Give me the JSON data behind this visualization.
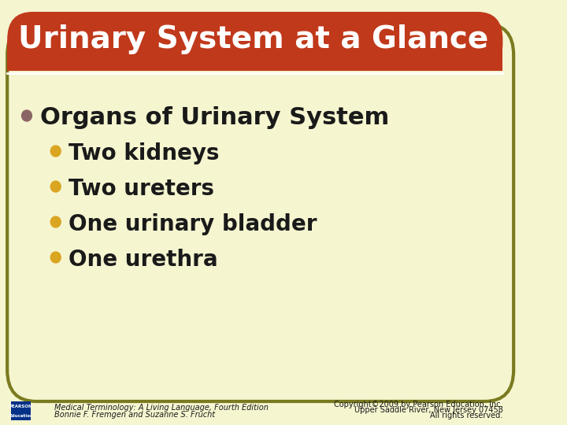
{
  "bg_color": "#f5f5d0",
  "header_color": "#c0391b",
  "header_text": "Urinary System at a Glance",
  "header_text_color": "#ffffff",
  "header_font_size": 28,
  "border_color": "#7a7a20",
  "main_bullet_color": "#8B6565",
  "main_bullet_text": "Organs of Urinary System",
  "main_bullet_font_size": 22,
  "sub_bullet_color": "#DAA520",
  "sub_bullets": [
    "Two kidneys",
    "Two ureters",
    "One urinary bladder",
    "One urethra"
  ],
  "sub_bullet_font_size": 20,
  "footer_left_line1": "Medical Terminology: A Living Language, Fourth Edition",
  "footer_left_line2": "Bonnie F. Fremgen and Suzanne S. Frucht",
  "footer_right_line1": "Copyright©2009 by Pearson Education, Inc.",
  "footer_right_line2": "Upper Saddle River, New Jersey 07458",
  "footer_right_line3": "All rights reserved.",
  "footer_font_size": 7,
  "text_color": "#1a1a1a"
}
